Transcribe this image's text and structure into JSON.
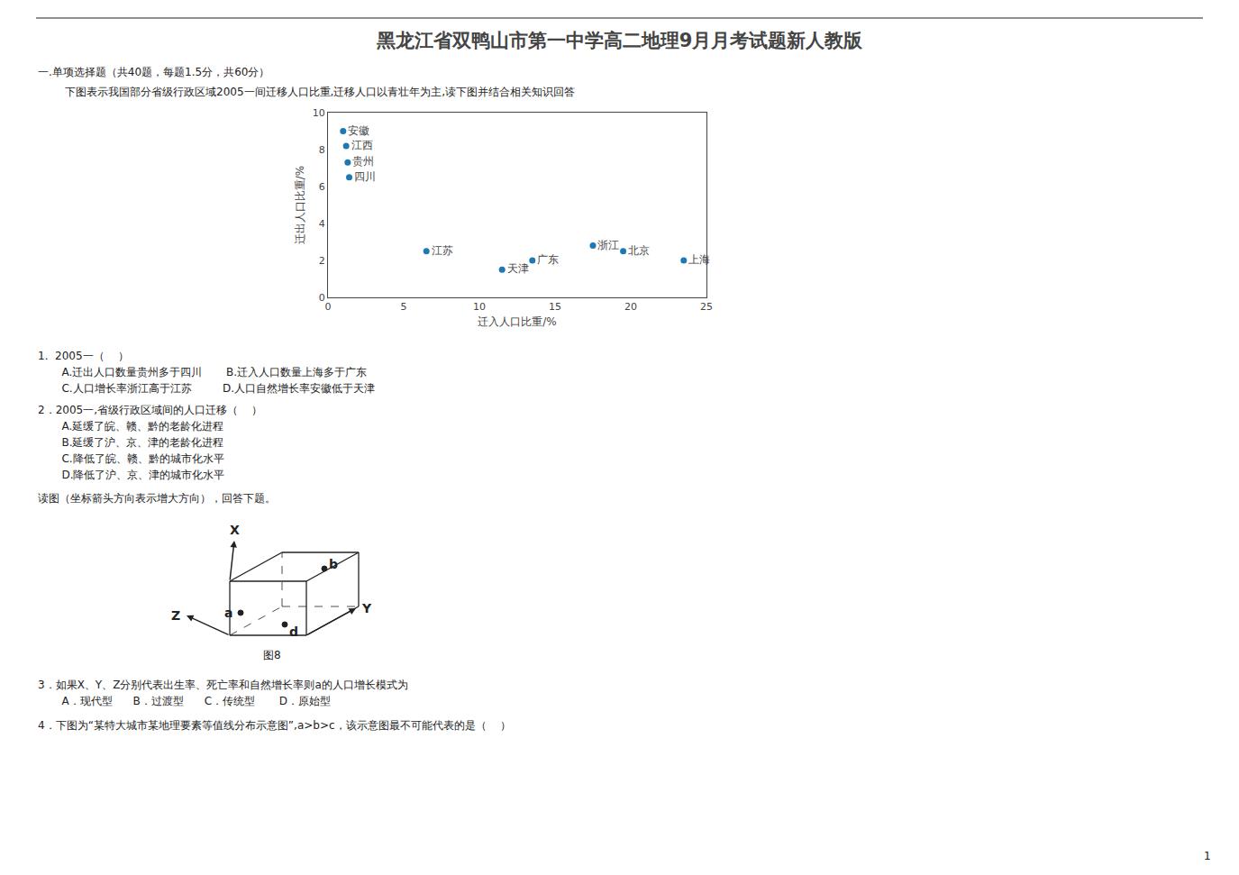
{
  "chart_data": {
    "type": "scatter",
    "title": "黑龙江省双鸭山市第一中学高二地理9月月考试题新人教版",
    "xlabel": "迁入人口比重/%",
    "ylabel": "迁出人口比重/%",
    "x": [
      1.0,
      1.2,
      1.3,
      1.4,
      6.5,
      11.5,
      13.5,
      17.5,
      19.5,
      23.5
    ],
    "values": [
      9.0,
      8.2,
      7.3,
      6.5,
      2.5,
      1.5,
      2.0,
      2.8,
      2.5,
      2.0
    ],
    "labels": [
      "安徽",
      "江西",
      "贵州",
      "四川",
      "江苏",
      "天津",
      "广东",
      "浙江",
      "北京",
      "上海"
    ],
    "xlim": [
      0,
      25
    ],
    "ylim": [
      0,
      10
    ],
    "xticks": [
      0,
      5,
      10,
      15,
      20,
      25
    ],
    "yticks": [
      0,
      2,
      4,
      6,
      8,
      10
    ],
    "grid": false,
    "annotations": [
      "一.单项选择题（共40题，每题1.5分，共60分）",
      "下图表示我国部分省级行政区域2005一间迁移人口比重,迁移人口以青壮年为主,读下图并结合相关知识回答",
      "1.  2005一（    ）",
      "   A.迁出人口数量贵州多于四川       B.迁入人口数量上海多于广东",
      "   C.人口增长率浙江高于江苏         D.人口自然增长率安徽低于天津",
      "2．2005一,省级行政区域间的人口迁移（    ）",
      "   A.延缓了皖、赣、黔的老龄化进程",
      "   B.延缓了沪、京、津的老龄化进程",
      "   C.降低了皖、赣、黔的城市化水平",
      "   D.降低了沪、京、津的城市化水平",
      "读图（坐标箭头方向表示增大方向），回答下题。",
      "a",
      "b",
      "d",
      "X",
      "Y",
      "Z",
      "图8",
      "3．如果X、Y、Z分别代表出生率、死亡率和自然增长率则a的人口增长模式为",
      "   A．现代型      B．过渡型      C．传统型       D．原始型",
      "4．下图为“某特大城市某地理要素等值线分布示意图”,a>b>c，该示意图最不可能代表的是（    ）",
      "1"
    ]
  }
}
